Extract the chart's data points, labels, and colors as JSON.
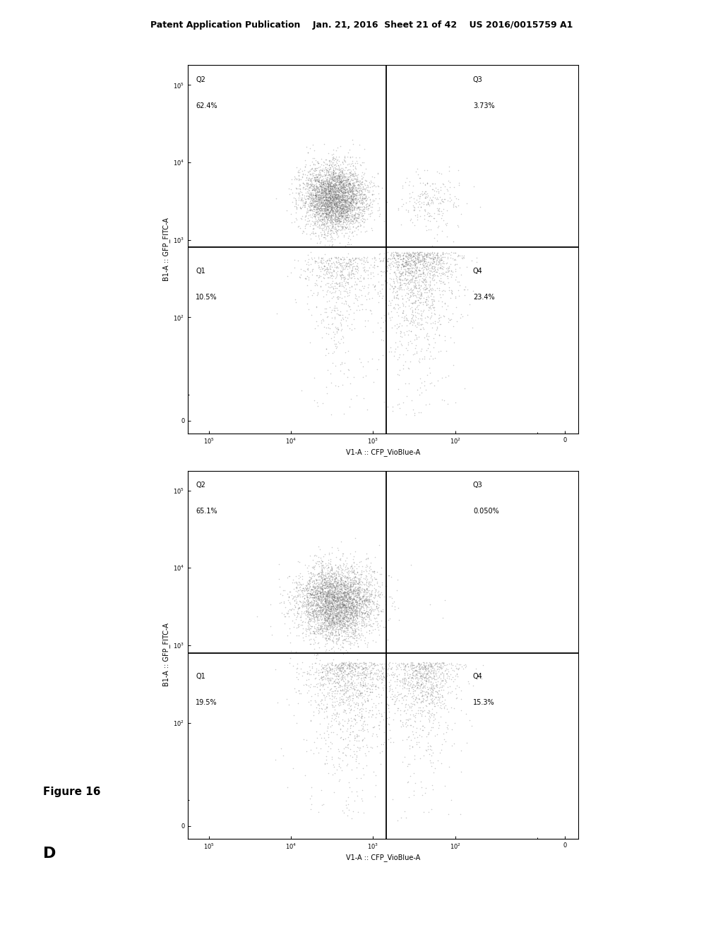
{
  "header_text": "Patent Application Publication    Jan. 21, 2016  Sheet 21 of 42    US 2016/0015759 A1",
  "figure_label": "Figure 16",
  "panel_label": "D",
  "background_color": "#ffffff",
  "top_plot": {
    "Q1_label": "Q1",
    "Q1_pct": "10.5%",
    "Q2_label": "Q2",
    "Q2_pct": "62.4%",
    "Q3_label": "Q3",
    "Q3_pct": "3.73%",
    "Q4_label": "Q4",
    "Q4_pct": "23.4%",
    "xlabel": "V1-A :: CFP_VioBlue-A",
    "ylabel": "B1-A :: GFP_FITC-A"
  },
  "bottom_plot": {
    "Q1_label": "Q1",
    "Q1_pct": "19.5%",
    "Q2_label": "Q2",
    "Q2_pct": "65.1%",
    "Q3_label": "Q3",
    "Q3_pct": "0.050%",
    "Q4_label": "Q4",
    "Q4_pct": "15.3%",
    "xlabel": "V1-A :: CFP_VioBlue-A",
    "ylabel": "B1-A :: GFP_FITC-A"
  },
  "dot_color": "#666666",
  "dot_alpha": 0.35,
  "dot_size": 1.2,
  "gate_line_color": "#000000",
  "text_color": "#000000",
  "font_size_header": 9,
  "font_size_quadrant": 7,
  "font_size_axis_label": 7,
  "font_size_panel": 16,
  "font_size_tick": 6
}
